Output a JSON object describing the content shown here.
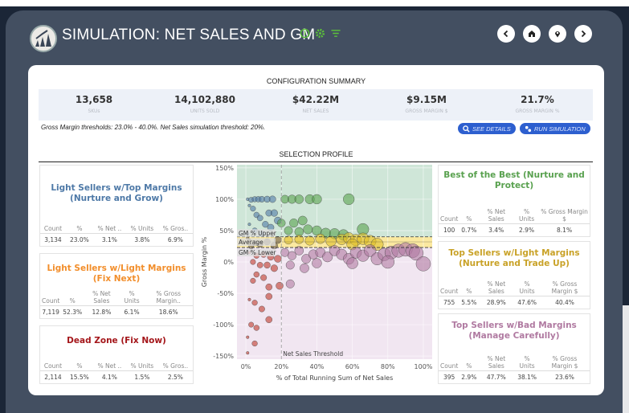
{
  "header": {
    "title": "SIMULATION: NET SALES AND GM",
    "icons": [
      "info-icon",
      "gear-icon",
      "filter-icon"
    ],
    "nav": [
      "back-icon",
      "home-icon",
      "location-icon",
      "forward-icon"
    ],
    "accent": "#5cc23a"
  },
  "config": {
    "title": "CONFIGURATION SUMMARY",
    "kpis": [
      {
        "value": "13,658",
        "label": "SKUs"
      },
      {
        "value": "14,102,880",
        "label": "UNITS SOLD"
      },
      {
        "value": "$42.22M",
        "label": "NET SALES"
      },
      {
        "value": "$9.15M",
        "label": "GROSS MARGIN $"
      },
      {
        "value": "21.7%",
        "label": "GROSS MARGIN %"
      }
    ],
    "thresholds_text": "Gross Margin thresholds: 23.0% - 40.0%. Net Sales simulation threshold: 20%.",
    "see_details": "SEE DETAILS",
    "run_simulation": "RUN SIMULATION"
  },
  "profile": {
    "title": "SELECTION PROFILE",
    "segments": [
      {
        "title": "Light Sellers w/Top Margins (Nurture and Grow)",
        "color": "#4e79a7",
        "headers": [
          "Count",
          "%",
          "% Net ..",
          "% Units",
          "% Gros.."
        ],
        "values": [
          "3,134",
          "23.0%",
          "3.1%",
          "3.8%",
          "6.9%"
        ]
      },
      {
        "title": "Light Sellers w/Light Margins (Fix Next)",
        "color": "#f28e2b",
        "headers": [
          "Count",
          "%",
          "% Net Sales",
          "% Units",
          "% Gross Margin.."
        ],
        "values": [
          "7,119",
          "52.3%",
          "12.8%",
          "6.1%",
          "18.6%"
        ]
      },
      {
        "title": "Dead Zone (Fix Now)",
        "color": "#a4161a",
        "headers": [
          "Count",
          "%",
          "% Net ..",
          "% Units",
          "% Gros.."
        ],
        "values": [
          "2,114",
          "15.5%",
          "4.1%",
          "1.5%",
          "2.5%"
        ]
      },
      {
        "title": "Best of the Best (Nurture and Protect)",
        "color": "#59a14f",
        "headers": [
          "Count",
          "%",
          "% Net Sales",
          "% Units",
          "% Gross Margin $"
        ],
        "values": [
          "100",
          "0.7%",
          "3.4%",
          "2.9%",
          "8.1%"
        ]
      },
      {
        "title": "Top Sellers w/Light Margins (Nurture and Trade Up)",
        "color": "#c9a227",
        "headers": [
          "Count",
          "%",
          "% Net Sales",
          "% Units",
          "% Gross Margin $"
        ],
        "values": [
          "755",
          "5.5%",
          "28.9%",
          "47.6%",
          "40.4%"
        ]
      },
      {
        "title": "Top Sellers w/Bad Margins (Manage Carefully)",
        "color": "#b07aa1",
        "headers": [
          "Count",
          "%",
          "% Net Sales",
          "% Units",
          "% Gross Margin $"
        ],
        "values": [
          "395",
          "2.9%",
          "47.7%",
          "38.1%",
          "23.6%"
        ]
      }
    ]
  },
  "chart_data": {
    "type": "scatter",
    "xlabel": "% of Total Running Sum of Net Sales",
    "ylabel": "Gross Margin %",
    "xlim": [
      -5,
      105
    ],
    "ylim": [
      -155,
      155
    ],
    "x_ticks": [
      "0%",
      "20%",
      "40%",
      "60%",
      "80%",
      "100%"
    ],
    "y_ticks": [
      "150%",
      "100%",
      "50%",
      "0%",
      "-50%",
      "-100%",
      "-150%"
    ],
    "reference_lines": [
      {
        "label": "GM % Upper",
        "axis": "y",
        "value": 40
      },
      {
        "label": "Average",
        "axis": "y",
        "value": 32
      },
      {
        "label": "GM % Lower",
        "axis": "y",
        "value": 23
      },
      {
        "label": "Net Sales Threshold",
        "axis": "x",
        "value": 20
      }
    ],
    "bands": [
      {
        "from": 40,
        "to": 155,
        "color": "#cfe6d8"
      },
      {
        "from": 23,
        "to": 40,
        "color": "#fbe9a0"
      },
      {
        "from": -155,
        "to": 23,
        "color": "#f1e6f1"
      }
    ],
    "segment_colors": {
      "blue": "#4e79a7",
      "orange": "#6b5a4a",
      "red": "#c0392b",
      "green": "#59a14f",
      "yellow": "#e0c02a",
      "purple": "#b07aa1"
    },
    "points": [
      [
        1,
        100,
        "blue"
      ],
      [
        3,
        99,
        "blue"
      ],
      [
        5,
        100,
        "blue"
      ],
      [
        7,
        100,
        "blue"
      ],
      [
        9,
        100,
        "blue"
      ],
      [
        12,
        100,
        "blue"
      ],
      [
        15,
        100,
        "blue"
      ],
      [
        2,
        90,
        "blue"
      ],
      [
        4,
        85,
        "blue"
      ],
      [
        6,
        75,
        "blue"
      ],
      [
        8,
        70,
        "blue"
      ],
      [
        13,
        78,
        "blue"
      ],
      [
        16,
        78,
        "blue"
      ],
      [
        11,
        60,
        "blue"
      ],
      [
        14,
        55,
        "blue"
      ],
      [
        18,
        66,
        "blue"
      ],
      [
        2,
        60,
        "blue"
      ],
      [
        5,
        50,
        "blue"
      ],
      [
        9,
        45,
        "blue"
      ],
      [
        1,
        45,
        "blue"
      ],
      [
        2,
        35,
        "orange"
      ],
      [
        5,
        30,
        "orange"
      ],
      [
        8,
        28,
        "orange"
      ],
      [
        12,
        32,
        "orange"
      ],
      [
        16,
        26,
        "orange"
      ],
      [
        3,
        25,
        "orange"
      ],
      [
        1,
        38,
        "orange"
      ],
      [
        18,
        35,
        "orange"
      ],
      [
        2,
        15,
        "red"
      ],
      [
        6,
        10,
        "red"
      ],
      [
        10,
        12,
        "red"
      ],
      [
        14,
        8,
        "red"
      ],
      [
        18,
        5,
        "red"
      ],
      [
        4,
        0,
        "red"
      ],
      [
        8,
        -5,
        "red"
      ],
      [
        12,
        -5,
        "red"
      ],
      [
        16,
        -10,
        "red"
      ],
      [
        6,
        -20,
        "red"
      ],
      [
        10,
        -25,
        "red"
      ],
      [
        13,
        -40,
        "red"
      ],
      [
        19,
        -38,
        "red"
      ],
      [
        4,
        -30,
        "red"
      ],
      [
        2,
        -60,
        "red"
      ],
      [
        5,
        -65,
        "red"
      ],
      [
        9,
        -75,
        "red"
      ],
      [
        13,
        -55,
        "red"
      ],
      [
        13,
        -92,
        "red"
      ],
      [
        6,
        -105,
        "red"
      ],
      [
        3,
        -100,
        "red"
      ],
      [
        5,
        -130,
        "red"
      ],
      [
        1,
        -120,
        "red"
      ],
      [
        1,
        -145,
        "red"
      ],
      [
        22,
        100,
        "green"
      ],
      [
        26,
        100,
        "green"
      ],
      [
        30,
        100,
        "green"
      ],
      [
        36,
        100,
        "green"
      ],
      [
        40,
        100,
        "green"
      ],
      [
        58,
        100,
        "green"
      ],
      [
        20,
        62,
        "green"
      ],
      [
        27,
        62,
        "green"
      ],
      [
        32,
        66,
        "green"
      ],
      [
        66,
        52,
        "green"
      ],
      [
        24,
        50,
        "green"
      ],
      [
        30,
        48,
        "green"
      ],
      [
        35,
        52,
        "green"
      ],
      [
        40,
        50,
        "green"
      ],
      [
        45,
        46,
        "green"
      ],
      [
        50,
        45,
        "green"
      ],
      [
        55,
        43,
        "green"
      ],
      [
        24,
        35,
        "yellow"
      ],
      [
        30,
        36,
        "yellow"
      ],
      [
        36,
        34,
        "yellow"
      ],
      [
        42,
        37,
        "yellow"
      ],
      [
        48,
        33,
        "yellow"
      ],
      [
        54,
        36,
        "yellow"
      ],
      [
        58,
        38,
        "yellow"
      ],
      [
        62,
        35,
        "yellow"
      ],
      [
        66,
        37,
        "yellow"
      ],
      [
        70,
        33,
        "yellow"
      ],
      [
        74,
        28,
        "yellow"
      ],
      [
        60,
        28,
        "yellow"
      ],
      [
        22,
        15,
        "purple"
      ],
      [
        26,
        10,
        "purple"
      ],
      [
        30,
        18,
        "purple"
      ],
      [
        34,
        5,
        "purple"
      ],
      [
        38,
        12,
        "purple"
      ],
      [
        42,
        15,
        "purple"
      ],
      [
        46,
        8,
        "purple"
      ],
      [
        50,
        18,
        "purple"
      ],
      [
        54,
        12,
        "purple"
      ],
      [
        58,
        5,
        "purple"
      ],
      [
        62,
        15,
        "purple"
      ],
      [
        66,
        10,
        "purple"
      ],
      [
        70,
        18,
        "purple"
      ],
      [
        74,
        5,
        "purple"
      ],
      [
        78,
        12,
        "purple"
      ],
      [
        82,
        15,
        "purple"
      ],
      [
        86,
        18,
        "purple"
      ],
      [
        90,
        20,
        "purple"
      ],
      [
        94,
        18,
        "purple"
      ],
      [
        96,
        14,
        "purple"
      ],
      [
        100,
        -3,
        "purple"
      ],
      [
        80,
        0,
        "purple"
      ],
      [
        60,
        -2,
        "purple"
      ],
      [
        40,
        -2,
        "purple"
      ],
      [
        25,
        -5,
        "purple"
      ],
      [
        33,
        -10,
        "purple"
      ],
      [
        25,
        -35,
        "purple"
      ]
    ]
  }
}
